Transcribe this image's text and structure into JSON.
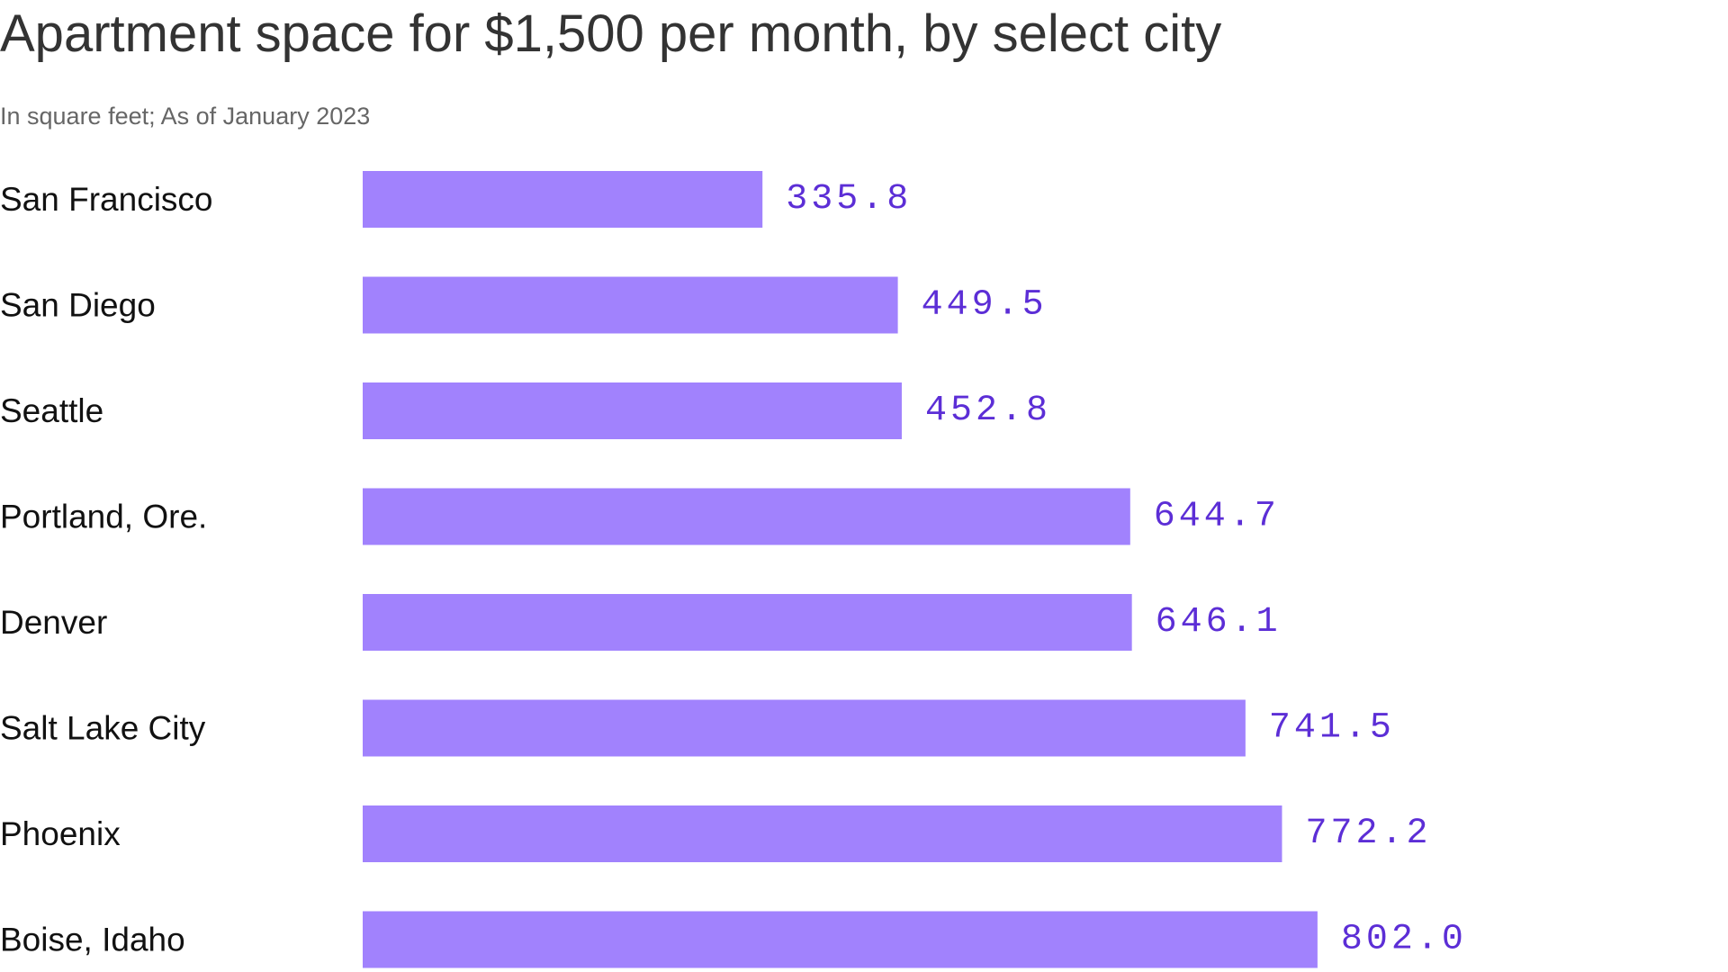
{
  "chart_data": {
    "type": "bar",
    "orientation": "horizontal",
    "title": "Apartment space for $1,500 per month, by select city",
    "subtitle": "In square feet; As of January 2023",
    "xlabel": "",
    "ylabel": "",
    "categories": [
      "San Francisco",
      "San Diego",
      "Seattle",
      "Portland, Ore.",
      "Denver",
      "Salt Lake City",
      "Phoenix",
      "Boise, Idaho"
    ],
    "values": [
      335.8,
      449.5,
      452.8,
      644.7,
      646.1,
      741.5,
      772.2,
      802.0
    ],
    "data_labels": [
      "335.8",
      "449.5",
      "452.8",
      "644.7",
      "646.1",
      "741.5",
      "772.2",
      "802.0"
    ],
    "xlim": [
      0,
      802.0
    ],
    "grid": false,
    "legend": "none",
    "colors": {
      "bar": "#a182fd",
      "value_label": "#5c2ed6",
      "title": "#333333",
      "subtitle": "#666666",
      "category_label": "#111111"
    }
  }
}
